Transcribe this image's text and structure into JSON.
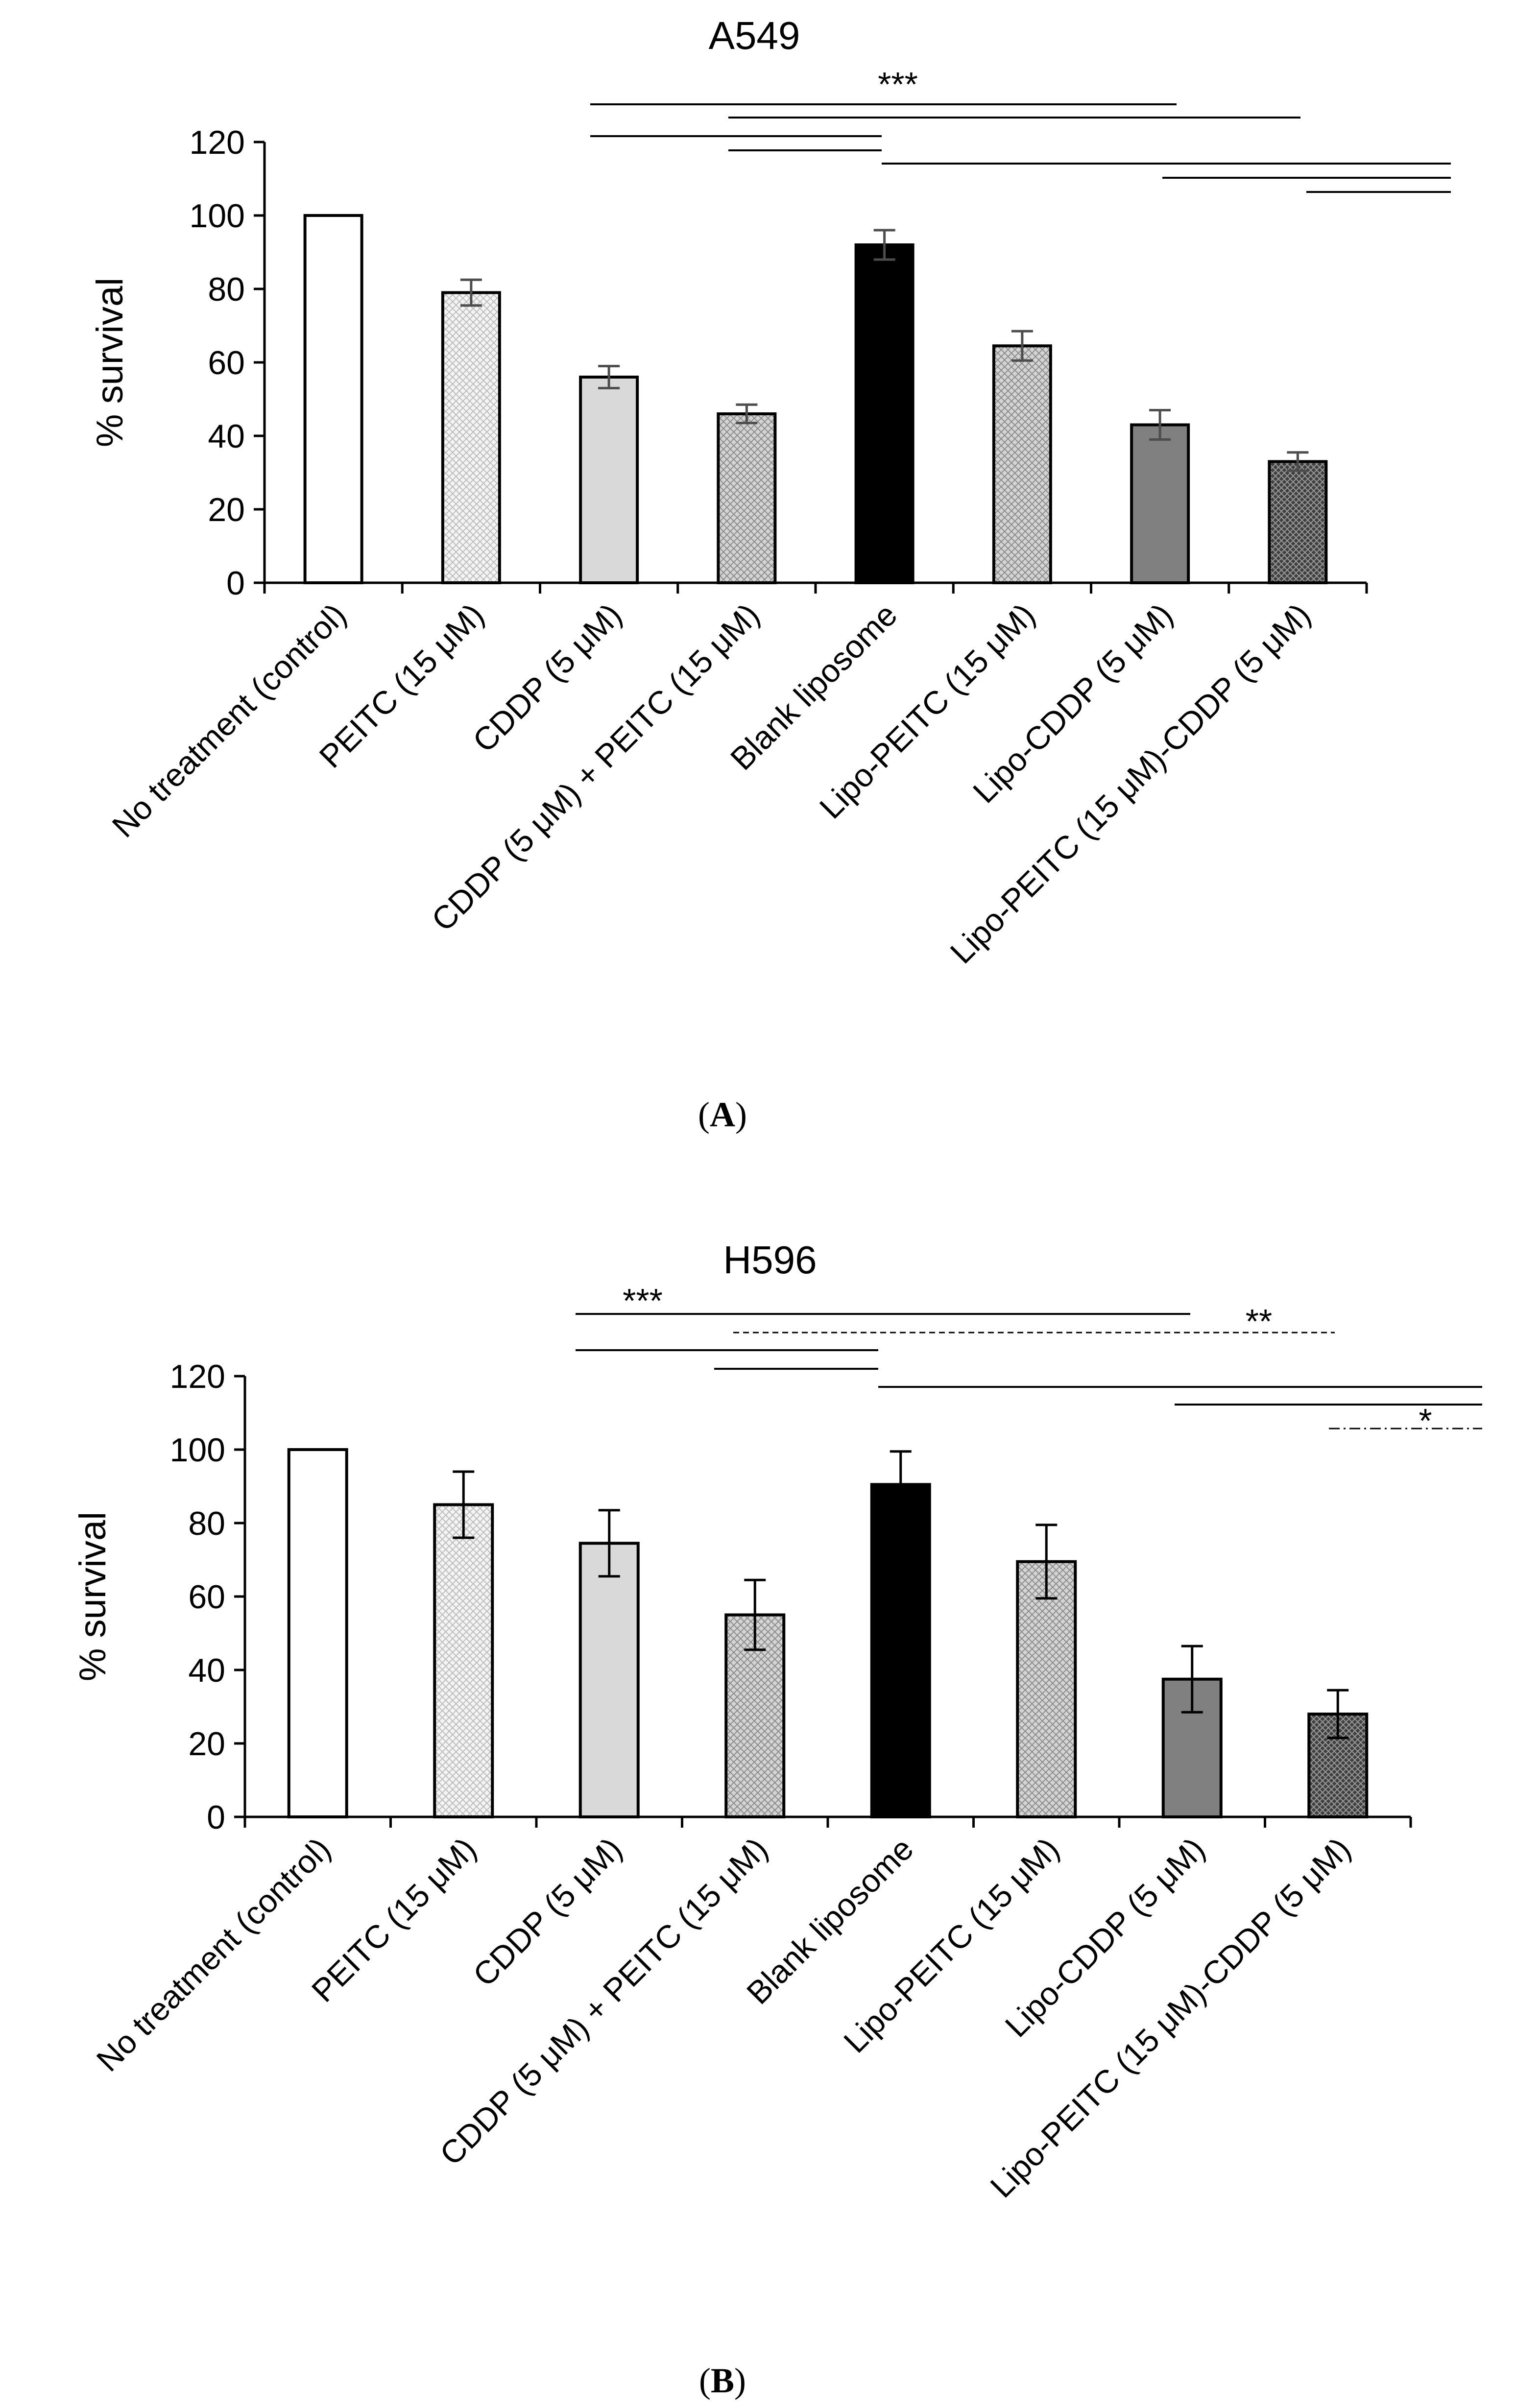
{
  "colors": {
    "axis": "#000000",
    "error_bar_a": "#4d4d4d",
    "error_bar_b": "#000000",
    "bar_edge": "#000000"
  },
  "bar_styles": [
    {
      "fill": "#ffffff",
      "pattern": "none"
    },
    {
      "fill": "#f4f4f4",
      "pattern": "light-crosshatch"
    },
    {
      "fill": "#d9d9d9",
      "pattern": "none"
    },
    {
      "fill": "#d4d4d4",
      "pattern": "crosshatch"
    },
    {
      "fill": "#000000",
      "pattern": "none"
    },
    {
      "fill": "#a6a6a6",
      "pattern": "crosshatch"
    },
    {
      "fill": "#808080",
      "pattern": "none"
    },
    {
      "fill": "#404040",
      "pattern": "dense-crosshatch"
    }
  ],
  "chart_data": [
    {
      "type": "bar",
      "title": "A549",
      "panel_label": "A",
      "xlabel": "",
      "ylabel": "% survival",
      "ylim": [
        0,
        120
      ],
      "yticks": [
        0,
        20,
        40,
        60,
        80,
        100,
        120
      ],
      "categories": [
        "No treatment (control)",
        "PEITC (15 μM)",
        "CDDP (5 μM)",
        "CDDP (5 μM) + PEITC (15 μM)",
        "Blank liposome",
        "Lipo-PEITC (15 μM)",
        "Lipo-CDDP (5 μM)",
        "Lipo-PEITC (15 μM)-CDDP (5 μM)"
      ],
      "values": [
        100,
        79,
        56,
        46,
        92,
        64.5,
        43,
        33
      ],
      "errors": [
        0,
        3.5,
        3,
        2.5,
        4,
        4,
        4,
        2.5
      ],
      "significance": [
        {
          "label": "***",
          "pairs": "comparisons indicated by horizontal brackets"
        }
      ]
    },
    {
      "type": "bar",
      "title": "H596",
      "panel_label": "B",
      "xlabel": "",
      "ylabel": "% survival",
      "ylim": [
        0,
        120
      ],
      "yticks": [
        0,
        20,
        40,
        60,
        80,
        100,
        120
      ],
      "categories": [
        "No treatment (control)",
        "PEITC (15 μM)",
        "CDDP (5 μM)",
        "CDDP (5 μM) + PEITC (15 μM)",
        "Blank liposome",
        "Lipo-PEITC (15 μM)",
        "Lipo-CDDP (5 μM)",
        "Lipo-PEITC (15 μM)-CDDP (5 μM)"
      ],
      "values": [
        100,
        85,
        74.5,
        55,
        90.5,
        69.5,
        37.5,
        28
      ],
      "errors": [
        0,
        9,
        9,
        9.5,
        9,
        10,
        9,
        6.5
      ],
      "significance": [
        {
          "label": "***",
          "pairs": "solid brackets"
        },
        {
          "label": "**",
          "pairs": "dashed bracket"
        },
        {
          "label": "*",
          "pairs": "dash-dot bracket"
        }
      ]
    }
  ]
}
